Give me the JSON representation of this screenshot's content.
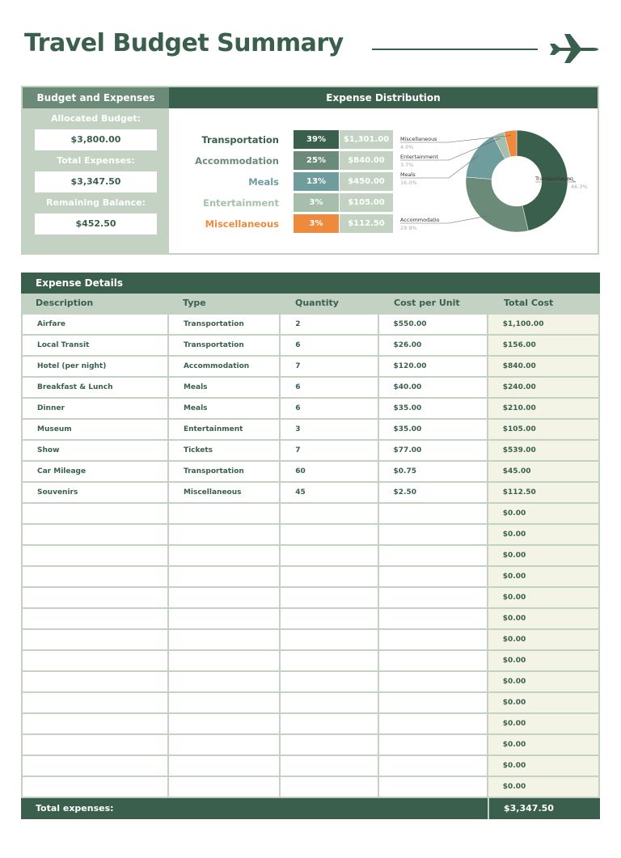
{
  "title": "Travel Budget Summary",
  "budget": {
    "header": "Budget and Expenses",
    "allocated_label": "Allocated Budget:",
    "allocated": "$3,800.00",
    "total_label": "Total Expenses:",
    "total": "$3,347.50",
    "remaining_label": "Remaining Balance:",
    "remaining": "$452.50"
  },
  "distribution": {
    "header": "Expense Distribution",
    "items": [
      {
        "category": "Transportation",
        "percent": "39%",
        "amount": "$1,301.00",
        "color": "#3a5f4d"
      },
      {
        "category": "Accommodation",
        "percent": "25%",
        "amount": "$840.00",
        "color": "#6b8b78"
      },
      {
        "category": "Meals",
        "percent": "13%",
        "amount": "$450.00",
        "color": "#6f9c9c"
      },
      {
        "category": "Entertainment",
        "percent": "3%",
        "amount": "$105.00",
        "color": "#a6bfad"
      },
      {
        "category": "Miscellaneous",
        "percent": "3%",
        "amount": "$112.50",
        "color": "#ef8a3c"
      }
    ]
  },
  "chart_data": {
    "type": "pie",
    "donut": true,
    "slices": [
      {
        "label": "Transportation",
        "value": 46.3,
        "display": "46.3%",
        "color": "#3a5f4d"
      },
      {
        "label": "Accommodatio",
        "value": 29.9,
        "display": "29.9%",
        "color": "#6b8b78"
      },
      {
        "label": "Meals",
        "value": 16.0,
        "display": "16.0%",
        "color": "#6f9c9c"
      },
      {
        "label": "Entertainment",
        "value": 3.7,
        "display": "3.7%",
        "color": "#a6bfad"
      },
      {
        "label": "Miscellaneous",
        "value": 4.0,
        "display": "4.0%",
        "color": "#ef8a3c"
      }
    ]
  },
  "details": {
    "header": "Expense Details",
    "columns": [
      "Description",
      "Type",
      "Quantity",
      "Cost per Unit",
      "Total Cost"
    ],
    "rows": [
      [
        "Airfare",
        "Transportation",
        "2",
        "$550.00",
        "$1,100.00"
      ],
      [
        "Local Transit",
        "Transportation",
        "6",
        "$26.00",
        "$156.00"
      ],
      [
        "Hotel (per night)",
        "Accommodation",
        "7",
        "$120.00",
        "$840.00"
      ],
      [
        "Breakfast & Lunch",
        "Meals",
        "6",
        "$40.00",
        "$240.00"
      ],
      [
        "Dinner",
        "Meals",
        "6",
        "$35.00",
        "$210.00"
      ],
      [
        "Museum",
        "Entertainment",
        "3",
        "$35.00",
        "$105.00"
      ],
      [
        "Show",
        "Tickets",
        "7",
        "$77.00",
        "$539.00"
      ],
      [
        "Car Mileage",
        "Transportation",
        "60",
        "$0.75",
        "$45.00"
      ],
      [
        "Souvenirs",
        "Miscellaneous",
        "45",
        "$2.50",
        "$112.50"
      ],
      [
        "",
        "",
        "",
        "",
        "$0.00"
      ],
      [
        "",
        "",
        "",
        "",
        "$0.00"
      ],
      [
        "",
        "",
        "",
        "",
        "$0.00"
      ],
      [
        "",
        "",
        "",
        "",
        "$0.00"
      ],
      [
        "",
        "",
        "",
        "",
        "$0.00"
      ],
      [
        "",
        "",
        "",
        "",
        "$0.00"
      ],
      [
        "",
        "",
        "",
        "",
        "$0.00"
      ],
      [
        "",
        "",
        "",
        "",
        "$0.00"
      ],
      [
        "",
        "",
        "",
        "",
        "$0.00"
      ],
      [
        "",
        "",
        "",
        "",
        "$0.00"
      ],
      [
        "",
        "",
        "",
        "",
        "$0.00"
      ],
      [
        "",
        "",
        "",
        "",
        "$0.00"
      ],
      [
        "",
        "",
        "",
        "",
        "$0.00"
      ],
      [
        "",
        "",
        "",
        "",
        "$0.00"
      ]
    ],
    "total_label": "Total expenses:",
    "total": "$3,347.50"
  }
}
